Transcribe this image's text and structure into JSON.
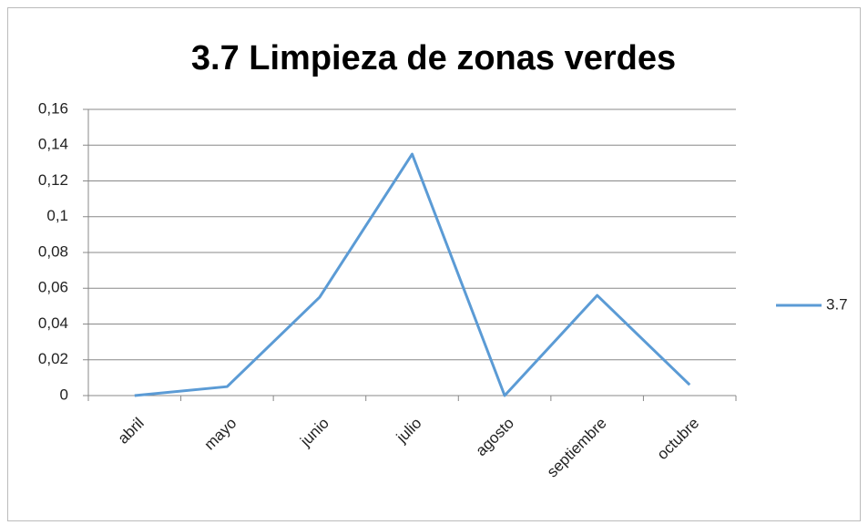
{
  "chart_data": {
    "type": "line",
    "title": "3.7 Limpieza de zonas verdes",
    "categories": [
      "abril",
      "mayo",
      "junio",
      "julio",
      "agosto",
      "septiembre",
      "octubre"
    ],
    "series": [
      {
        "name": "3.7",
        "color": "#5b9bd5",
        "values": [
          0,
          0.005,
          0.055,
          0.135,
          0,
          0.056,
          0.006
        ]
      }
    ],
    "ylim": [
      0,
      0.16
    ],
    "yticks": [
      0,
      {
        "value": 0.02,
        "label": "0,02"
      },
      {
        "value": 0.04,
        "label": "0,04"
      },
      {
        "value": 0.06,
        "label": "0,06"
      },
      {
        "value": 0.08,
        "label": "0,08"
      },
      {
        "value": 0.1,
        "label": "0,1"
      },
      {
        "value": 0.12,
        "label": "0,12"
      },
      {
        "value": 0.14,
        "label": "0,14"
      },
      {
        "value": 0.16,
        "label": "0,16"
      }
    ],
    "grid": true,
    "legend": "right"
  }
}
